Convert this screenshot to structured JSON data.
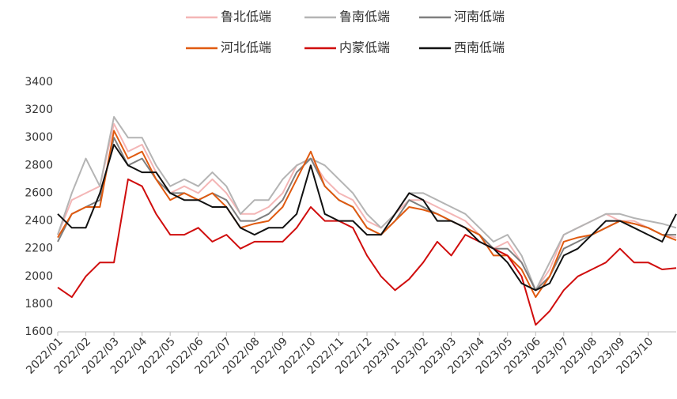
{
  "chart_data": {
    "type": "line",
    "x": [
      0,
      0.5,
      1,
      1.5,
      2,
      2.5,
      3,
      3.5,
      4,
      4.5,
      5,
      5.5,
      6,
      6.5,
      7,
      7.5,
      8,
      8.5,
      9,
      9.5,
      10,
      10.5,
      11,
      11.5,
      12,
      12.5,
      13,
      13.5,
      14,
      14.5,
      15,
      15.5,
      16,
      16.5,
      17,
      17.5,
      18,
      18.5,
      19,
      19.5,
      20,
      20.5,
      21,
      21.5,
      22
    ],
    "xlim": [
      0,
      22
    ],
    "xticks": [
      {
        "value": 0,
        "label": "2022/01"
      },
      {
        "value": 1,
        "label": "2022/02"
      },
      {
        "value": 2,
        "label": "2022/03"
      },
      {
        "value": 3,
        "label": "2022/04"
      },
      {
        "value": 4,
        "label": "2022/05"
      },
      {
        "value": 5,
        "label": "2022/06"
      },
      {
        "value": 6,
        "label": "2022/07"
      },
      {
        "value": 7,
        "label": "2022/08"
      },
      {
        "value": 8,
        "label": "2022/09"
      },
      {
        "value": 9,
        "label": "2022/10"
      },
      {
        "value": 10,
        "label": "2022/11"
      },
      {
        "value": 11,
        "label": "2022/12"
      },
      {
        "value": 12,
        "label": "2023/01"
      },
      {
        "value": 13,
        "label": "2023/02"
      },
      {
        "value": 14,
        "label": "2023/03"
      },
      {
        "value": 15,
        "label": "2023/04"
      },
      {
        "value": 16,
        "label": "2023/05"
      },
      {
        "value": 17,
        "label": "2023/06"
      },
      {
        "value": 18,
        "label": "2023/07"
      },
      {
        "value": 19,
        "label": "2023/08"
      },
      {
        "value": 20,
        "label": "2023/09"
      },
      {
        "value": 21,
        "label": "2023/10"
      }
    ],
    "ylim": [
      1600,
      3400
    ],
    "yticks": [
      1600,
      1800,
      2000,
      2200,
      2400,
      2600,
      2800,
      3000,
      3200,
      3400
    ],
    "legend": "top",
    "series": [
      {
        "name": "鲁北低端",
        "color": "#f4b6b6",
        "values": [
          2300,
          2550,
          2600,
          2650,
          3100,
          2900,
          2950,
          2750,
          2600,
          2650,
          2600,
          2700,
          2600,
          2450,
          2450,
          2500,
          2600,
          2800,
          2850,
          2700,
          2600,
          2550,
          2400,
          2350,
          2450,
          2550,
          2550,
          2500,
          2450,
          2400,
          2300,
          2200,
          2250,
          2100,
          1900,
          2050,
          2300,
          2350,
          2400,
          2450,
          2400,
          2400,
          2350,
          2300,
          2280
        ]
      },
      {
        "name": "鲁南低端",
        "color": "#b4b4b4",
        "values": [
          2300,
          2600,
          2850,
          2650,
          3150,
          3000,
          3000,
          2800,
          2650,
          2700,
          2650,
          2750,
          2650,
          2450,
          2550,
          2550,
          2700,
          2800,
          2850,
          2800,
          2700,
          2600,
          2450,
          2350,
          2450,
          2600,
          2600,
          2550,
          2500,
          2450,
          2350,
          2250,
          2300,
          2150,
          1900,
          2100,
          2300,
          2350,
          2400,
          2450,
          2450,
          2420,
          2400,
          2380,
          2350
        ]
      },
      {
        "name": "河南低端",
        "color": "#7f7f7f",
        "values": [
          2250,
          2450,
          2500,
          2550,
          3000,
          2800,
          2850,
          2700,
          2600,
          2600,
          2550,
          2600,
          2550,
          2400,
          2400,
          2450,
          2550,
          2750,
          2850,
          2650,
          2550,
          2500,
          2350,
          2300,
          2400,
          2550,
          2500,
          2450,
          2400,
          2350,
          2300,
          2200,
          2200,
          2100,
          1900,
          2000,
          2200,
          2250,
          2300,
          2350,
          2400,
          2380,
          2350,
          2300,
          2300
        ]
      },
      {
        "name": "河北低端",
        "color": "#e05a10",
        "values": [
          2280,
          2450,
          2500,
          2500,
          3050,
          2850,
          2900,
          2700,
          2550,
          2600,
          2550,
          2600,
          2500,
          2350,
          2380,
          2400,
          2500,
          2700,
          2900,
          2650,
          2550,
          2500,
          2350,
          2300,
          2400,
          2500,
          2480,
          2450,
          2400,
          2350,
          2300,
          2150,
          2150,
          2050,
          1850,
          2000,
          2250,
          2280,
          2300,
          2350,
          2400,
          2380,
          2350,
          2300,
          2260
        ]
      },
      {
        "name": "内蒙低端",
        "color": "#d00d0d",
        "values": [
          1920,
          1850,
          2000,
          2100,
          2100,
          2700,
          2650,
          2450,
          2300,
          2300,
          2350,
          2250,
          2300,
          2200,
          2250,
          2250,
          2250,
          2350,
          2500,
          2400,
          2400,
          2350,
          2150,
          2000,
          1900,
          1980,
          2100,
          2250,
          2150,
          2300,
          2250,
          2200,
          2150,
          2000,
          1650,
          1750,
          1900,
          2000,
          2050,
          2100,
          2200,
          2100,
          2100,
          2050,
          2060
        ]
      },
      {
        "name": "西南低端",
        "color": "#111111",
        "values": [
          2450,
          2350,
          2350,
          2600,
          2950,
          2800,
          2750,
          2750,
          2600,
          2550,
          2550,
          2500,
          2500,
          2350,
          2300,
          2350,
          2350,
          2450,
          2800,
          2450,
          2400,
          2400,
          2300,
          2300,
          2450,
          2600,
          2550,
          2400,
          2400,
          2350,
          2250,
          2200,
          2100,
          1950,
          1900,
          1950,
          2150,
          2200,
          2300,
          2400,
          2400,
          2350,
          2300,
          2250,
          2450
        ]
      }
    ]
  }
}
